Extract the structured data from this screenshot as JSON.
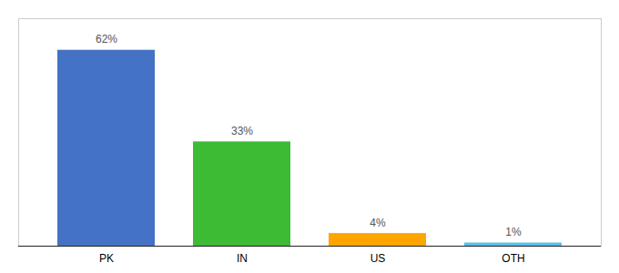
{
  "chart_data": {
    "type": "bar",
    "categories": [
      "PK",
      "IN",
      "US",
      "OTH"
    ],
    "values": [
      62,
      33,
      4,
      1
    ],
    "value_labels": [
      "62%",
      "33%",
      "4%",
      "1%"
    ],
    "colors": [
      "#4472C4",
      "#3DBB35",
      "#FFA500",
      "#59BFEE"
    ],
    "ylim": [
      0,
      72
    ],
    "data_labels": true,
    "tick_labels": "x",
    "grid": false
  }
}
